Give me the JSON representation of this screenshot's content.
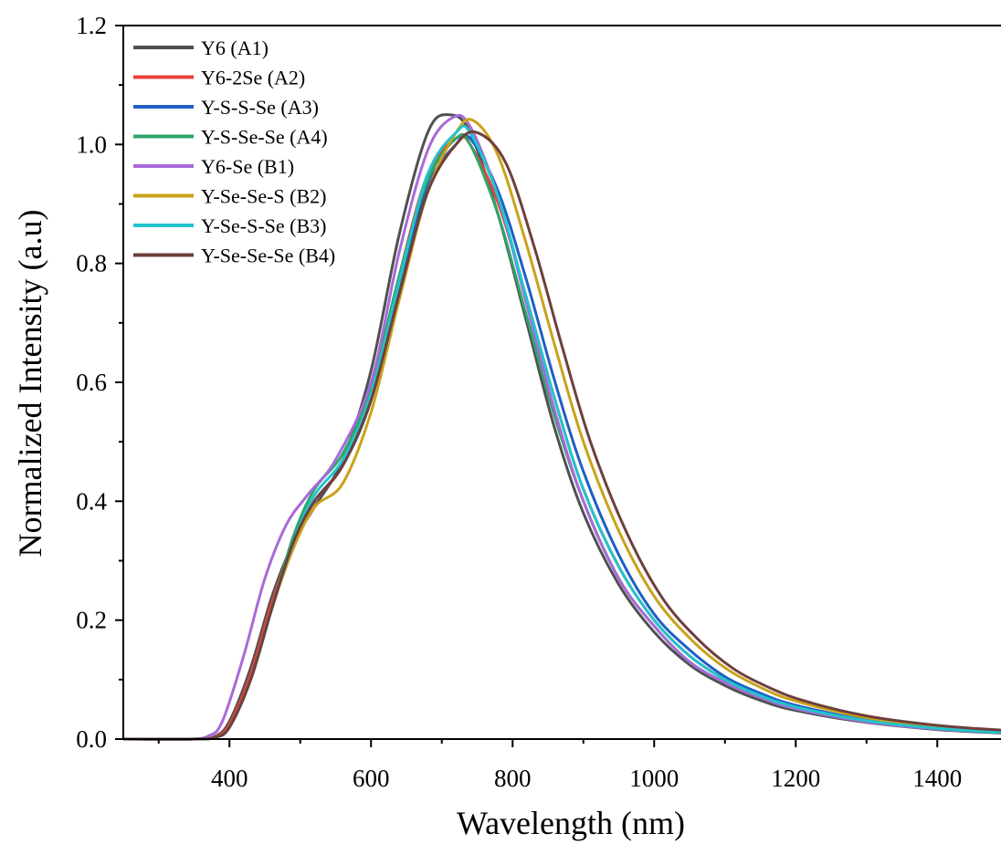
{
  "chart_data": {
    "type": "line",
    "title": "",
    "xlabel": "Wavelength (nm)",
    "ylabel": "Normalized Intensity (a.u)",
    "xlim": [
      250,
      1490
    ],
    "ylim": [
      0,
      1.2
    ],
    "xticks": [
      400,
      600,
      800,
      1000,
      1200,
      1400
    ],
    "xtick_labels": [
      "400",
      "600",
      "800",
      "1000",
      "1200",
      "1400"
    ],
    "yticks": [
      0.0,
      0.2,
      0.4,
      0.6,
      0.8,
      1.0,
      1.2
    ],
    "ytick_labels": [
      "0.0",
      "0.2",
      "0.4",
      "0.6",
      "0.8",
      "1.0",
      "1.2"
    ],
    "grid": false,
    "legend_position": "top-left",
    "series": [
      {
        "name": "Y6 (A1)",
        "color": "#505050",
        "x": [
          250,
          350,
          380,
          400,
          430,
          460,
          490,
          520,
          560,
          600,
          640,
          680,
          710,
          740,
          780,
          820,
          860,
          900,
          950,
          1000,
          1050,
          1100,
          1150,
          1200,
          1300,
          1400,
          1490
        ],
        "y": [
          0,
          0,
          0.005,
          0.03,
          0.12,
          0.24,
          0.33,
          0.39,
          0.47,
          0.62,
          0.85,
          1.02,
          1.05,
          1.02,
          0.88,
          0.7,
          0.52,
          0.38,
          0.26,
          0.18,
          0.125,
          0.09,
          0.065,
          0.048,
          0.028,
          0.016,
          0.01
        ]
      },
      {
        "name": "Y6-2Se (A2)",
        "color": "#e8403a",
        "x": [
          250,
          350,
          380,
          400,
          430,
          460,
          490,
          520,
          560,
          600,
          640,
          680,
          720,
          740,
          780,
          820,
          860,
          900,
          950,
          1000,
          1050,
          1100,
          1150,
          1200,
          1300,
          1400,
          1490
        ],
        "y": [
          0,
          0,
          0.004,
          0.025,
          0.11,
          0.23,
          0.33,
          0.4,
          0.46,
          0.58,
          0.78,
          0.95,
          1.01,
          1.0,
          0.9,
          0.74,
          0.57,
          0.42,
          0.29,
          0.2,
          0.14,
          0.1,
          0.072,
          0.053,
          0.03,
          0.018,
          0.011
        ]
      },
      {
        "name": "Y-S-S-Se (A3)",
        "color": "#1f5fc4",
        "x": [
          250,
          350,
          380,
          400,
          430,
          460,
          490,
          520,
          560,
          600,
          640,
          680,
          720,
          740,
          780,
          820,
          860,
          900,
          950,
          1000,
          1050,
          1100,
          1150,
          1200,
          1300,
          1400,
          1490
        ],
        "y": [
          0,
          0,
          0.003,
          0.02,
          0.1,
          0.22,
          0.33,
          0.4,
          0.46,
          0.57,
          0.76,
          0.93,
          1.0,
          1.01,
          0.92,
          0.77,
          0.6,
          0.45,
          0.31,
          0.21,
          0.15,
          0.105,
          0.077,
          0.057,
          0.032,
          0.019,
          0.012
        ]
      },
      {
        "name": "Y-S-Se-Se (A4)",
        "color": "#2ea56a",
        "x": [
          250,
          350,
          380,
          400,
          430,
          460,
          490,
          520,
          560,
          600,
          640,
          680,
          720,
          740,
          780,
          820,
          860,
          900,
          950,
          1000,
          1050,
          1100,
          1150,
          1200,
          1300,
          1400,
          1490
        ],
        "y": [
          0,
          0,
          0.003,
          0.02,
          0.1,
          0.22,
          0.34,
          0.42,
          0.48,
          0.59,
          0.78,
          0.94,
          1.01,
          1.0,
          0.88,
          0.71,
          0.54,
          0.4,
          0.27,
          0.19,
          0.13,
          0.095,
          0.07,
          0.051,
          0.029,
          0.017,
          0.011
        ]
      },
      {
        "name": "Y6-Se (B1)",
        "color": "#a86ad8",
        "x": [
          250,
          340,
          370,
          390,
          420,
          450,
          480,
          510,
          550,
          600,
          640,
          680,
          715,
          740,
          780,
          820,
          860,
          900,
          950,
          1000,
          1050,
          1100,
          1150,
          1200,
          1300,
          1400,
          1490
        ],
        "y": [
          0,
          0,
          0.005,
          0.03,
          0.14,
          0.27,
          0.36,
          0.41,
          0.47,
          0.6,
          0.82,
          0.99,
          1.045,
          1.03,
          0.91,
          0.73,
          0.55,
          0.4,
          0.27,
          0.19,
          0.13,
          0.095,
          0.07,
          0.051,
          0.029,
          0.017,
          0.011
        ]
      },
      {
        "name": "Y-Se-Se-S (B2)",
        "color": "#c9a21a",
        "x": [
          250,
          350,
          380,
          400,
          430,
          460,
          490,
          520,
          560,
          600,
          640,
          680,
          720,
          745,
          780,
          820,
          860,
          900,
          950,
          1000,
          1050,
          1100,
          1150,
          1200,
          1300,
          1400,
          1490
        ],
        "y": [
          0,
          0,
          0.003,
          0.02,
          0.1,
          0.22,
          0.32,
          0.39,
          0.43,
          0.55,
          0.74,
          0.92,
          1.02,
          1.04,
          0.98,
          0.83,
          0.66,
          0.5,
          0.35,
          0.24,
          0.17,
          0.12,
          0.087,
          0.064,
          0.036,
          0.021,
          0.013
        ]
      },
      {
        "name": "Y-Se-S-Se (B3)",
        "color": "#22c4cc",
        "x": [
          250,
          350,
          380,
          400,
          430,
          460,
          490,
          520,
          560,
          600,
          640,
          680,
          720,
          740,
          780,
          820,
          860,
          900,
          950,
          1000,
          1050,
          1100,
          1150,
          1200,
          1300,
          1400,
          1490
        ],
        "y": [
          0,
          0,
          0.003,
          0.02,
          0.1,
          0.22,
          0.33,
          0.41,
          0.47,
          0.58,
          0.77,
          0.95,
          1.02,
          1.02,
          0.91,
          0.74,
          0.57,
          0.42,
          0.29,
          0.2,
          0.14,
          0.1,
          0.073,
          0.054,
          0.031,
          0.018,
          0.011
        ]
      },
      {
        "name": "Y-Se-Se-Se (B4)",
        "color": "#6e3f3c",
        "x": [
          250,
          350,
          380,
          400,
          430,
          460,
          490,
          520,
          560,
          600,
          640,
          680,
          720,
          750,
          790,
          830,
          870,
          910,
          960,
          1010,
          1060,
          1110,
          1160,
          1210,
          1300,
          1400,
          1490
        ],
        "y": [
          0,
          0,
          0.003,
          0.02,
          0.1,
          0.22,
          0.33,
          0.4,
          0.46,
          0.57,
          0.75,
          0.92,
          1.0,
          1.02,
          0.97,
          0.83,
          0.66,
          0.5,
          0.35,
          0.24,
          0.17,
          0.12,
          0.088,
          0.065,
          0.039,
          0.023,
          0.015
        ]
      }
    ]
  }
}
